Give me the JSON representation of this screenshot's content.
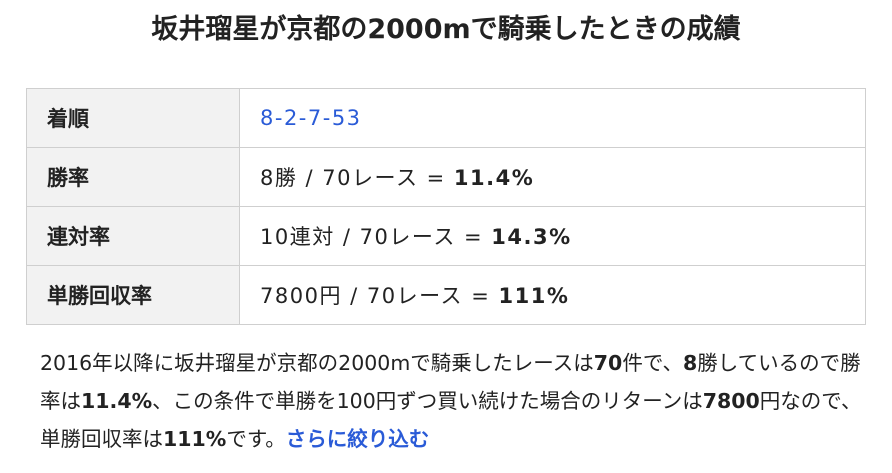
{
  "header": {
    "title": "坂井瑠星が京都の2000mで騎乗したときの成績"
  },
  "table": {
    "rows": [
      {
        "label": "着順",
        "value": "8-2-7-53"
      },
      {
        "label": "勝率",
        "value": "8勝 / 70レース = ",
        "result": "11.4%"
      },
      {
        "label": "連対率",
        "value": "10連対 / 70レース = ",
        "result": "14.3%"
      },
      {
        "label": "単勝回収率",
        "value": "7800円 / 70レース = ",
        "result": "111%"
      }
    ]
  },
  "summary": {
    "segments": [
      "2016年以降に坂井瑠星が京都の2000mで騎乗したレースは",
      "70",
      "件で、",
      "8",
      "勝しているので勝率は",
      "11.4%",
      "、この条件で単勝を100円ずつ買い続けた場合のリターンは",
      "7800",
      "円なので、単勝回収率は",
      "111%",
      "です。"
    ],
    "link": "さらに絞り込む"
  }
}
